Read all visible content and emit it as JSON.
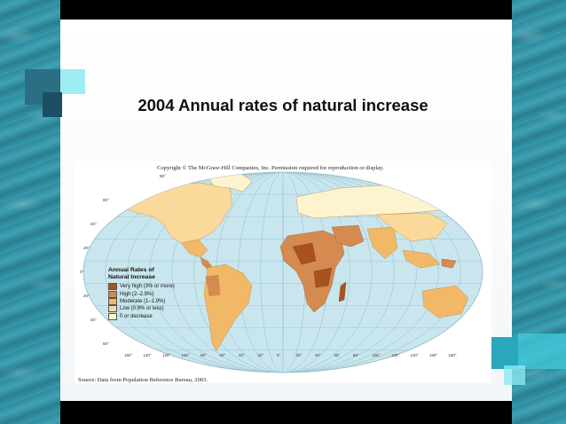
{
  "slide": {
    "title": "2004 Annual rates of natural increase"
  },
  "figure": {
    "copyright": "Copyright © The McGraw-Hill Companies, Inc. Permission required for reproduction or display.",
    "source": "Source: Data from Population Reference Bureau, 2003.",
    "latitude_labels": [
      "80°",
      "60°",
      "40°",
      "20°",
      "0°",
      "20°",
      "40°",
      "60°"
    ],
    "longitude_labels": [
      "160°",
      "140°",
      "120°",
      "100°",
      "80°",
      "60°",
      "40°",
      "20°",
      "0°",
      "20°",
      "40°",
      "60°",
      "80°",
      "100°",
      "120°",
      "140°",
      "160°",
      "180°"
    ]
  },
  "legend": {
    "title_line1": "Annual Rates of",
    "title_line2": "Natural Increase",
    "items": [
      {
        "label": "Very high (3% or more)",
        "color": "#a9521f"
      },
      {
        "label": "High (2–2.9%)",
        "color": "#d58a4f"
      },
      {
        "label": "Moderate (1–1.9%)",
        "color": "#f1b868"
      },
      {
        "label": "Low (0.9% or less)",
        "color": "#fbd99a"
      },
      {
        "label": "0 or decrease",
        "color": "#fdf4cf"
      }
    ]
  },
  "colors": {
    "ocean": "#c9e6ee",
    "grid": "#9cc7d3"
  }
}
